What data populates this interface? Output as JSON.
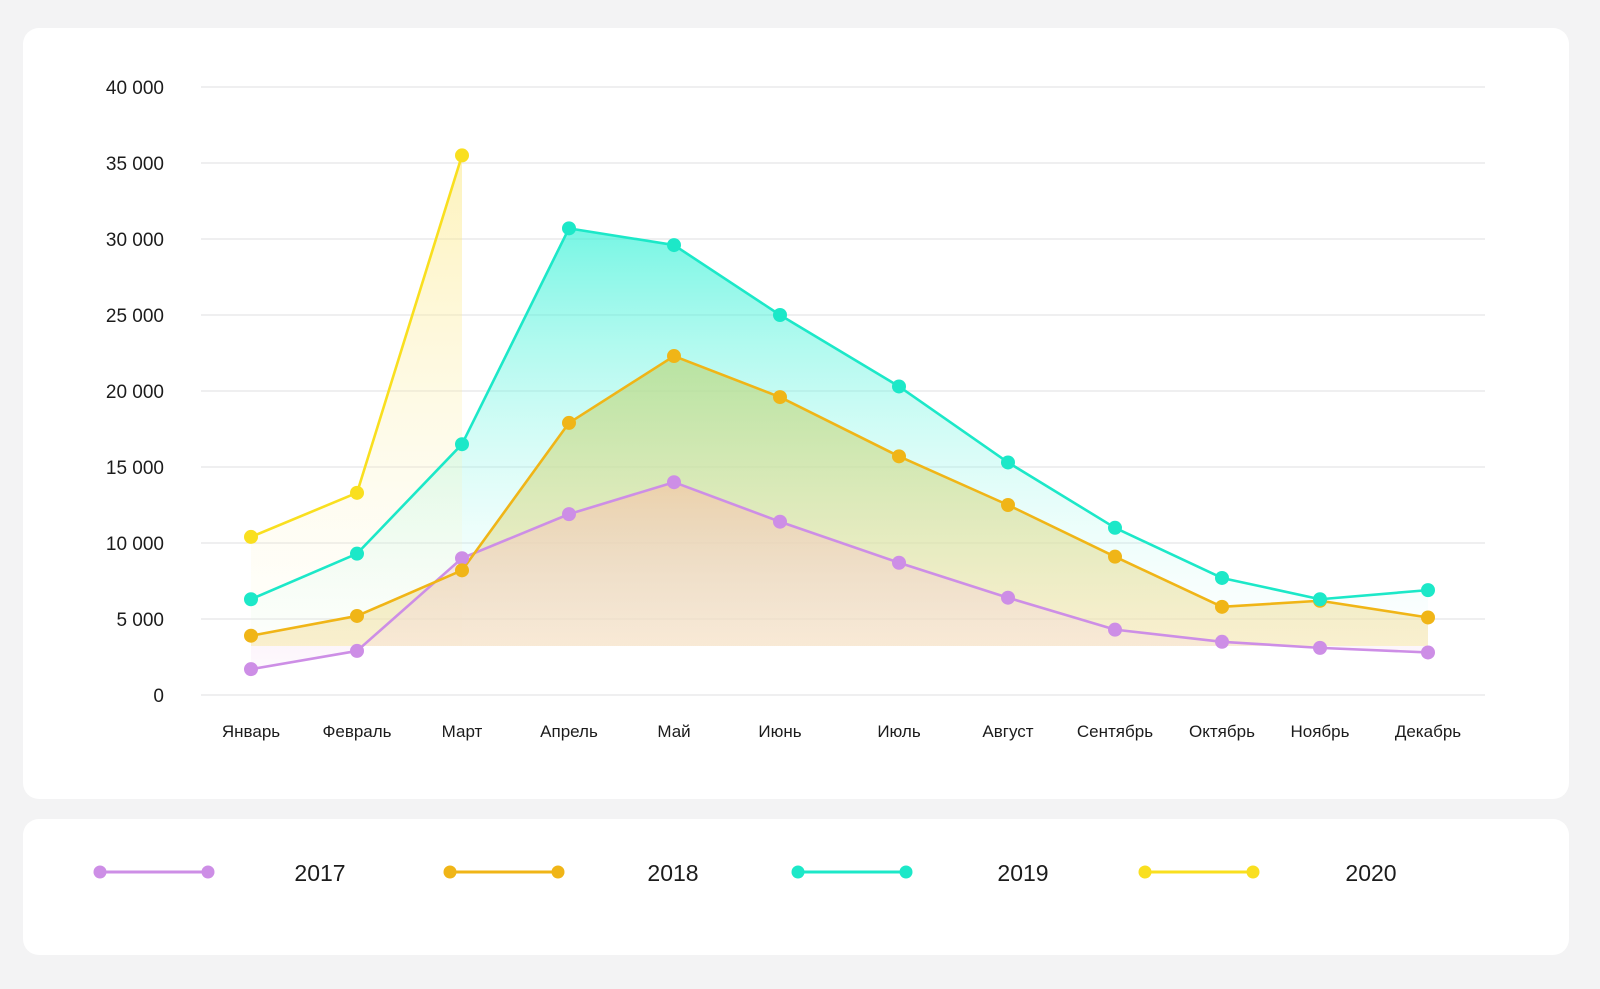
{
  "chart_data": {
    "type": "line",
    "categories": [
      "Январь",
      "Февраль",
      "Март",
      "Апрель",
      "Май",
      "Июнь",
      "Июль",
      "Август",
      "Сентябрь",
      "Октябрь",
      "Ноябрь",
      "Декабрь"
    ],
    "ylim": [
      0,
      40000
    ],
    "yticks": [
      0,
      5000,
      10000,
      15000,
      20000,
      25000,
      30000,
      35000,
      40000
    ],
    "ytick_labels": [
      "0",
      "5 000",
      "10 000",
      "15 000",
      "20 000",
      "25 000",
      "30 000",
      "35 000",
      "40 000"
    ],
    "grid": true,
    "legend_position": "bottom",
    "series": [
      {
        "name": "2017",
        "color": "#cd8ee6",
        "values": [
          1700,
          2900,
          9000,
          11900,
          14000,
          11400,
          8700,
          6400,
          4300,
          3500,
          3100,
          2800
        ]
      },
      {
        "name": "2018",
        "color": "#f0b517",
        "values": [
          3900,
          5200,
          8200,
          17900,
          22300,
          19600,
          15700,
          12500,
          9100,
          5800,
          6200,
          5100
        ]
      },
      {
        "name": "2019",
        "color": "#1ce8c8",
        "values": [
          6300,
          9300,
          16500,
          30700,
          29600,
          25000,
          20300,
          15300,
          11000,
          7700,
          6300,
          6900
        ]
      },
      {
        "name": "2020",
        "color": "#f9df1f",
        "values": [
          10400,
          13300,
          35500,
          null,
          null,
          null,
          null,
          null,
          null,
          null,
          null,
          null
        ]
      }
    ]
  }
}
